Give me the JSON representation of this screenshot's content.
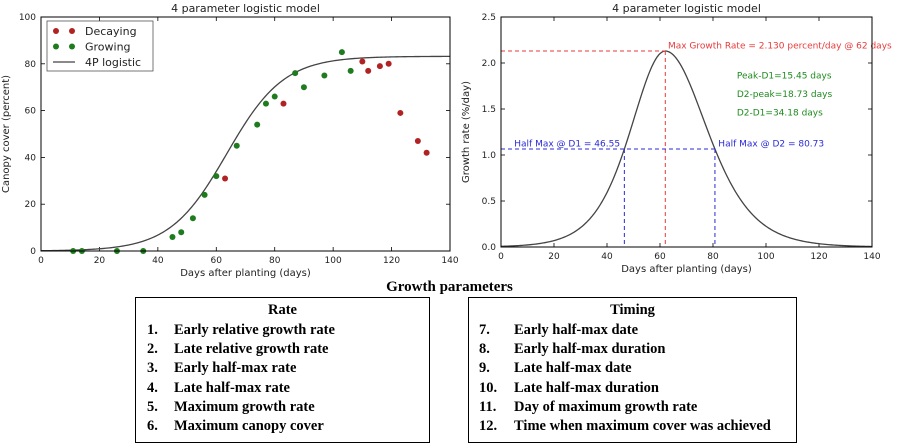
{
  "chart_data": [
    {
      "type": "scatter",
      "title": "4 parameter logistic model",
      "xlabel": "Days after planting (days)",
      "ylabel": "Canopy cover (percent)",
      "xlim": [
        0,
        140
      ],
      "ylim": [
        0,
        100
      ],
      "x_ticks": [
        0,
        20,
        40,
        60,
        80,
        100,
        120,
        140
      ],
      "y_ticks": [
        0,
        20,
        40,
        60,
        80,
        100
      ],
      "grid": false,
      "legend_position": "top-left",
      "series": [
        {
          "name": "Decaying",
          "color": "#b22222",
          "points": [
            [
              63,
              31
            ],
            [
              83,
              63
            ],
            [
              110,
              81
            ],
            [
              112,
              77
            ],
            [
              116,
              79
            ],
            [
              119,
              80
            ],
            [
              123,
              59
            ],
            [
              129,
              47
            ],
            [
              132,
              42
            ]
          ]
        },
        {
          "name": "Growing",
          "color": "#1e7b1e",
          "points": [
            [
              11,
              0
            ],
            [
              14,
              0
            ],
            [
              26,
              0
            ],
            [
              35,
              0
            ],
            [
              45,
              6
            ],
            [
              48,
              8
            ],
            [
              52,
              14
            ],
            [
              56,
              24
            ],
            [
              60,
              32
            ],
            [
              67,
              45
            ],
            [
              74,
              54
            ],
            [
              77,
              63
            ],
            [
              80,
              66
            ],
            [
              87,
              76
            ],
            [
              90,
              70
            ],
            [
              97,
              75
            ],
            [
              103,
              85
            ],
            [
              106,
              77
            ]
          ]
        },
        {
          "name": "4P logistic",
          "color": "#444444",
          "model": "logistic",
          "params": {
            "A": 83.2,
            "k": 0.1024,
            "t0": 63.6
          }
        }
      ]
    },
    {
      "type": "line",
      "title": "4 parameter logistic model",
      "xlabel": "Days after planting (days)",
      "ylabel": "Growth rate (%/day)",
      "xlim": [
        0,
        140
      ],
      "ylim": [
        0,
        2.5
      ],
      "x_ticks": [
        0,
        20,
        40,
        60,
        80,
        100,
        120,
        140
      ],
      "y_ticks": [
        "0.0",
        "0.5",
        "1.0",
        "1.5",
        "2.0",
        "2.5"
      ],
      "grid": false,
      "curve": {
        "color": "#444444",
        "model": "asymmetric-peak",
        "params": {
          "peak_x": 62,
          "peak_y": 2.13,
          "half_left": 46.55,
          "half_right": 80.73
        }
      },
      "max_line": {
        "x": 62,
        "y": 2.13,
        "color": "#e83a3a"
      },
      "half_lines": {
        "y": 1.065,
        "x_left": 46.55,
        "x_right": 80.73,
        "color": "#2a2ad6"
      },
      "annotations": {
        "max_rate": {
          "text": "Max Growth Rate = 2.130 percent/day @ 62 days",
          "x": 63,
          "y": 2.155,
          "color": "#e83a3a"
        },
        "peak_d1": {
          "text": "Peak-D1=15.45 days",
          "x": 89,
          "y": 1.83,
          "color": "#1e8a1e"
        },
        "d2_peak": {
          "text": "D2-peak=18.73 days",
          "x": 89,
          "y": 1.63,
          "color": "#1e8a1e"
        },
        "d2_d1": {
          "text": "D2-D1=34.18 days",
          "x": 89,
          "y": 1.43,
          "color": "#1e8a1e"
        },
        "half_d1": {
          "text": "Half Max @ D1 = 46.55",
          "x": 5,
          "y": 1.09,
          "color": "#2a2ad6"
        },
        "half_d2": {
          "text": "Half Max @ D2 = 80.73",
          "x": 82,
          "y": 1.09,
          "color": "#2a2ad6"
        }
      }
    }
  ],
  "heading": "Growth parameters",
  "rate_box": {
    "title": "Rate",
    "items": [
      {
        "num": "1.",
        "label": "Early relative growth rate"
      },
      {
        "num": "2.",
        "label": "Late relative growth rate"
      },
      {
        "num": "3.",
        "label": "Early half-max rate"
      },
      {
        "num": "4.",
        "label": "Late half-max rate"
      },
      {
        "num": "5.",
        "label": "Maximum growth rate"
      },
      {
        "num": "6.",
        "label": "Maximum canopy cover"
      }
    ]
  },
  "timing_box": {
    "title": "Timing",
    "items": [
      {
        "num": "7.",
        "label": "Early half-max date"
      },
      {
        "num": "8.",
        "label": "Early half-max duration"
      },
      {
        "num": "9.",
        "label": "Late half-max date"
      },
      {
        "num": "10.",
        "label": "Late half-max duration"
      },
      {
        "num": "11.",
        "label": "Day of maximum growth rate"
      },
      {
        "num": "12.",
        "label": "Time when maximum cover was achieved"
      }
    ]
  }
}
